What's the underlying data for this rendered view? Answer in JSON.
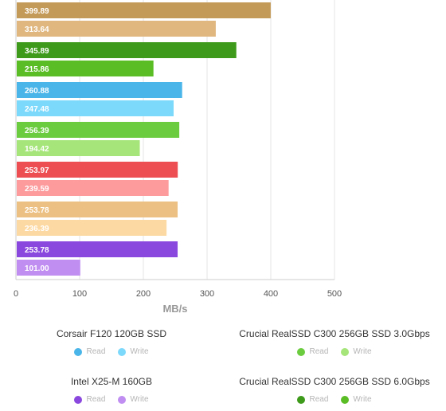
{
  "chart_data": {
    "type": "bar",
    "orientation": "horizontal",
    "xlabel": "MB/s",
    "xlim": [
      0,
      500
    ],
    "xticks": [
      0,
      100,
      200,
      300,
      400,
      500
    ],
    "grid": true,
    "groups": [
      {
        "read": 399.89,
        "write": 313.64,
        "read_color": "#c49a58",
        "write_color": "#dfb77f"
      },
      {
        "read": 345.89,
        "write": 215.86,
        "read_color": "#3e9a1a",
        "write_color": "#5bbd26"
      },
      {
        "read": 260.88,
        "write": 247.48,
        "read_color": "#4ab5e8",
        "write_color": "#7dd9fb"
      },
      {
        "read": 256.39,
        "write": 194.42,
        "read_color": "#6ccc40",
        "write_color": "#a6e57a"
      },
      {
        "read": 253.97,
        "write": 239.59,
        "read_color": "#ec4e52",
        "write_color": "#fc9a9c"
      },
      {
        "read": 253.78,
        "write": 236.39,
        "read_color": "#ecc082",
        "write_color": "#fcd9a2"
      },
      {
        "read": 253.78,
        "write": 101.0,
        "read_color": "#8b48de",
        "write_color": "#c08ef1"
      }
    ]
  },
  "legend": [
    {
      "title": "Corsair F120 120GB SSD",
      "read_label": "Read",
      "write_label": "Write",
      "read_color": "#4ab5e8",
      "write_color": "#7dd9fb"
    },
    {
      "title": "Crucial RealSSD C300 256GB SSD 3.0Gbps",
      "read_label": "Read",
      "write_label": "Write",
      "read_color": "#6ccc40",
      "write_color": "#a6e57a"
    },
    {
      "title": "Intel X25-M 160GB",
      "read_label": "Read",
      "write_label": "Write",
      "read_color": "#8b48de",
      "write_color": "#c08ef1"
    },
    {
      "title": "Crucial RealSSD C300 256GB SSD 6.0Gbps",
      "read_label": "Read",
      "write_label": "Write",
      "read_color": "#3e9a1a",
      "write_color": "#5bbd26"
    }
  ]
}
